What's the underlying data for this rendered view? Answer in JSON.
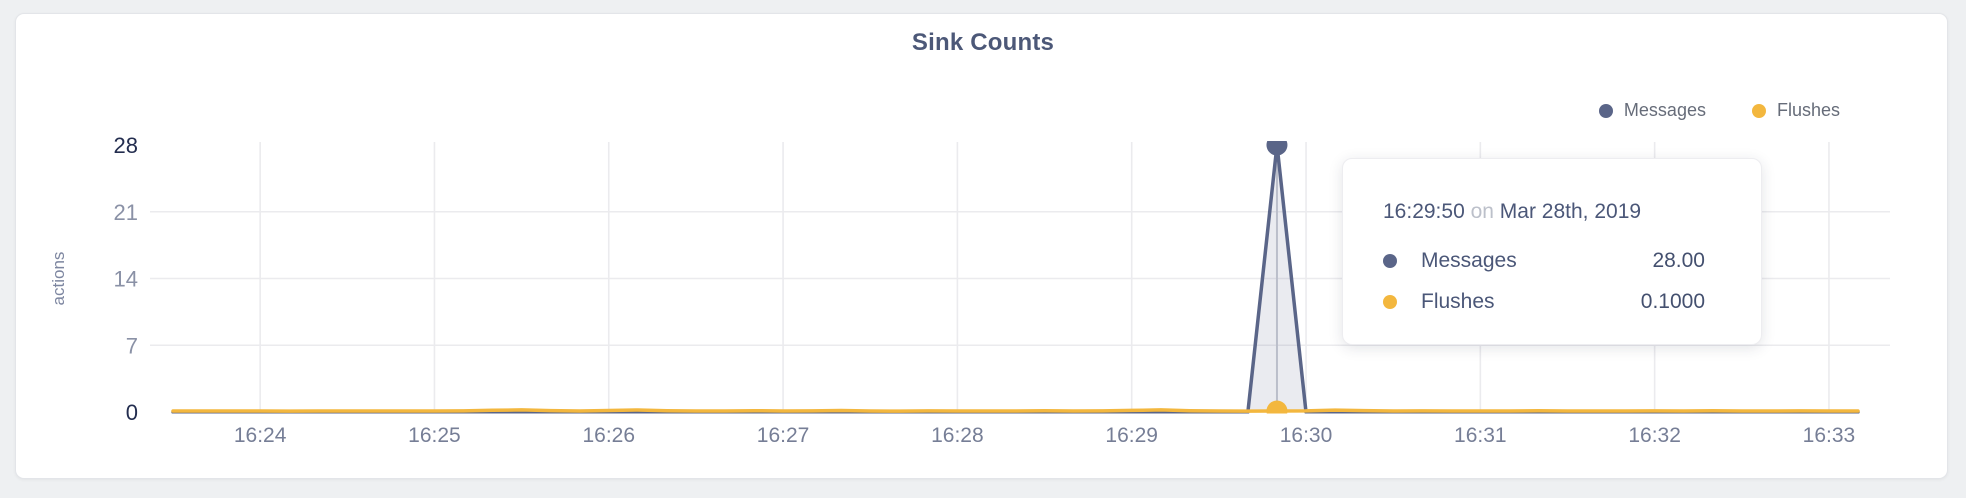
{
  "page": {
    "background": "#eef0f2"
  },
  "chart_data": {
    "type": "area",
    "title": "Sink Counts",
    "ylabel": "actions",
    "ylim": [
      0,
      28
    ],
    "y_ticks": [
      0,
      7,
      14,
      21,
      28
    ],
    "y_ticks_emphasized": [
      0,
      28
    ],
    "x_tick_labels": [
      "16:24",
      "16:25",
      "16:26",
      "16:27",
      "16:28",
      "16:29",
      "16:30",
      "16:31",
      "16:32",
      "16:33"
    ],
    "x_window": {
      "start": "16:23:30",
      "end": "16:33:10",
      "step_seconds": 10
    },
    "grid": true,
    "legend_position": "top-right",
    "colors": {
      "grid": "#ebebee",
      "hover_line": "#c9ccd4",
      "title": "#4c5878",
      "axis_strong": "#232d4f",
      "axis_muted": "#8a91a6"
    },
    "series": [
      {
        "name": "Messages",
        "color": "#5a6588",
        "fill": "rgba(90,101,136,0.13)",
        "values": [
          0,
          0,
          0,
          0,
          0,
          0,
          0,
          0,
          0,
          0,
          0,
          0,
          0,
          0,
          0,
          0,
          0,
          0,
          0,
          0,
          0,
          0,
          0,
          0,
          0,
          0,
          0,
          0,
          0,
          0,
          0,
          0,
          0,
          0,
          0,
          0,
          0,
          0,
          28,
          0,
          0,
          0,
          0,
          0,
          0,
          0,
          0,
          0,
          0,
          0,
          0,
          0,
          0,
          0,
          0,
          0,
          0,
          0,
          0
        ]
      },
      {
        "name": "Flushes",
        "color": "#f3b73e",
        "fill": "none",
        "values": [
          0.1,
          0.1,
          0.11,
          0.1,
          0.09,
          0.1,
          0.1,
          0.11,
          0.1,
          0.1,
          0.12,
          0.18,
          0.22,
          0.15,
          0.1,
          0.16,
          0.21,
          0.13,
          0.1,
          0.11,
          0.14,
          0.1,
          0.12,
          0.16,
          0.1,
          0.09,
          0.12,
          0.1,
          0.11,
          0.1,
          0.13,
          0.1,
          0.12,
          0.17,
          0.22,
          0.14,
          0.1,
          0.09,
          0.1,
          0.12,
          0.2,
          0.15,
          0.1,
          0.12,
          0.1,
          0.11,
          0.1,
          0.13,
          0.1,
          0.11,
          0.1,
          0.12,
          0.1,
          0.14,
          0.11,
          0.1,
          0.12,
          0.1,
          0.1
        ]
      }
    ]
  },
  "legend": {
    "items": [
      {
        "label": "Messages"
      },
      {
        "label": "Flushes"
      }
    ]
  },
  "tooltip": {
    "time": "16:29:50",
    "preposition": "on",
    "date": "Mar 28th, 2019",
    "rows": [
      {
        "label": "Messages",
        "value": "28.00",
        "color": "#5a6588"
      },
      {
        "label": "Flushes",
        "value": "0.1000",
        "color": "#f3b73e"
      }
    ]
  }
}
